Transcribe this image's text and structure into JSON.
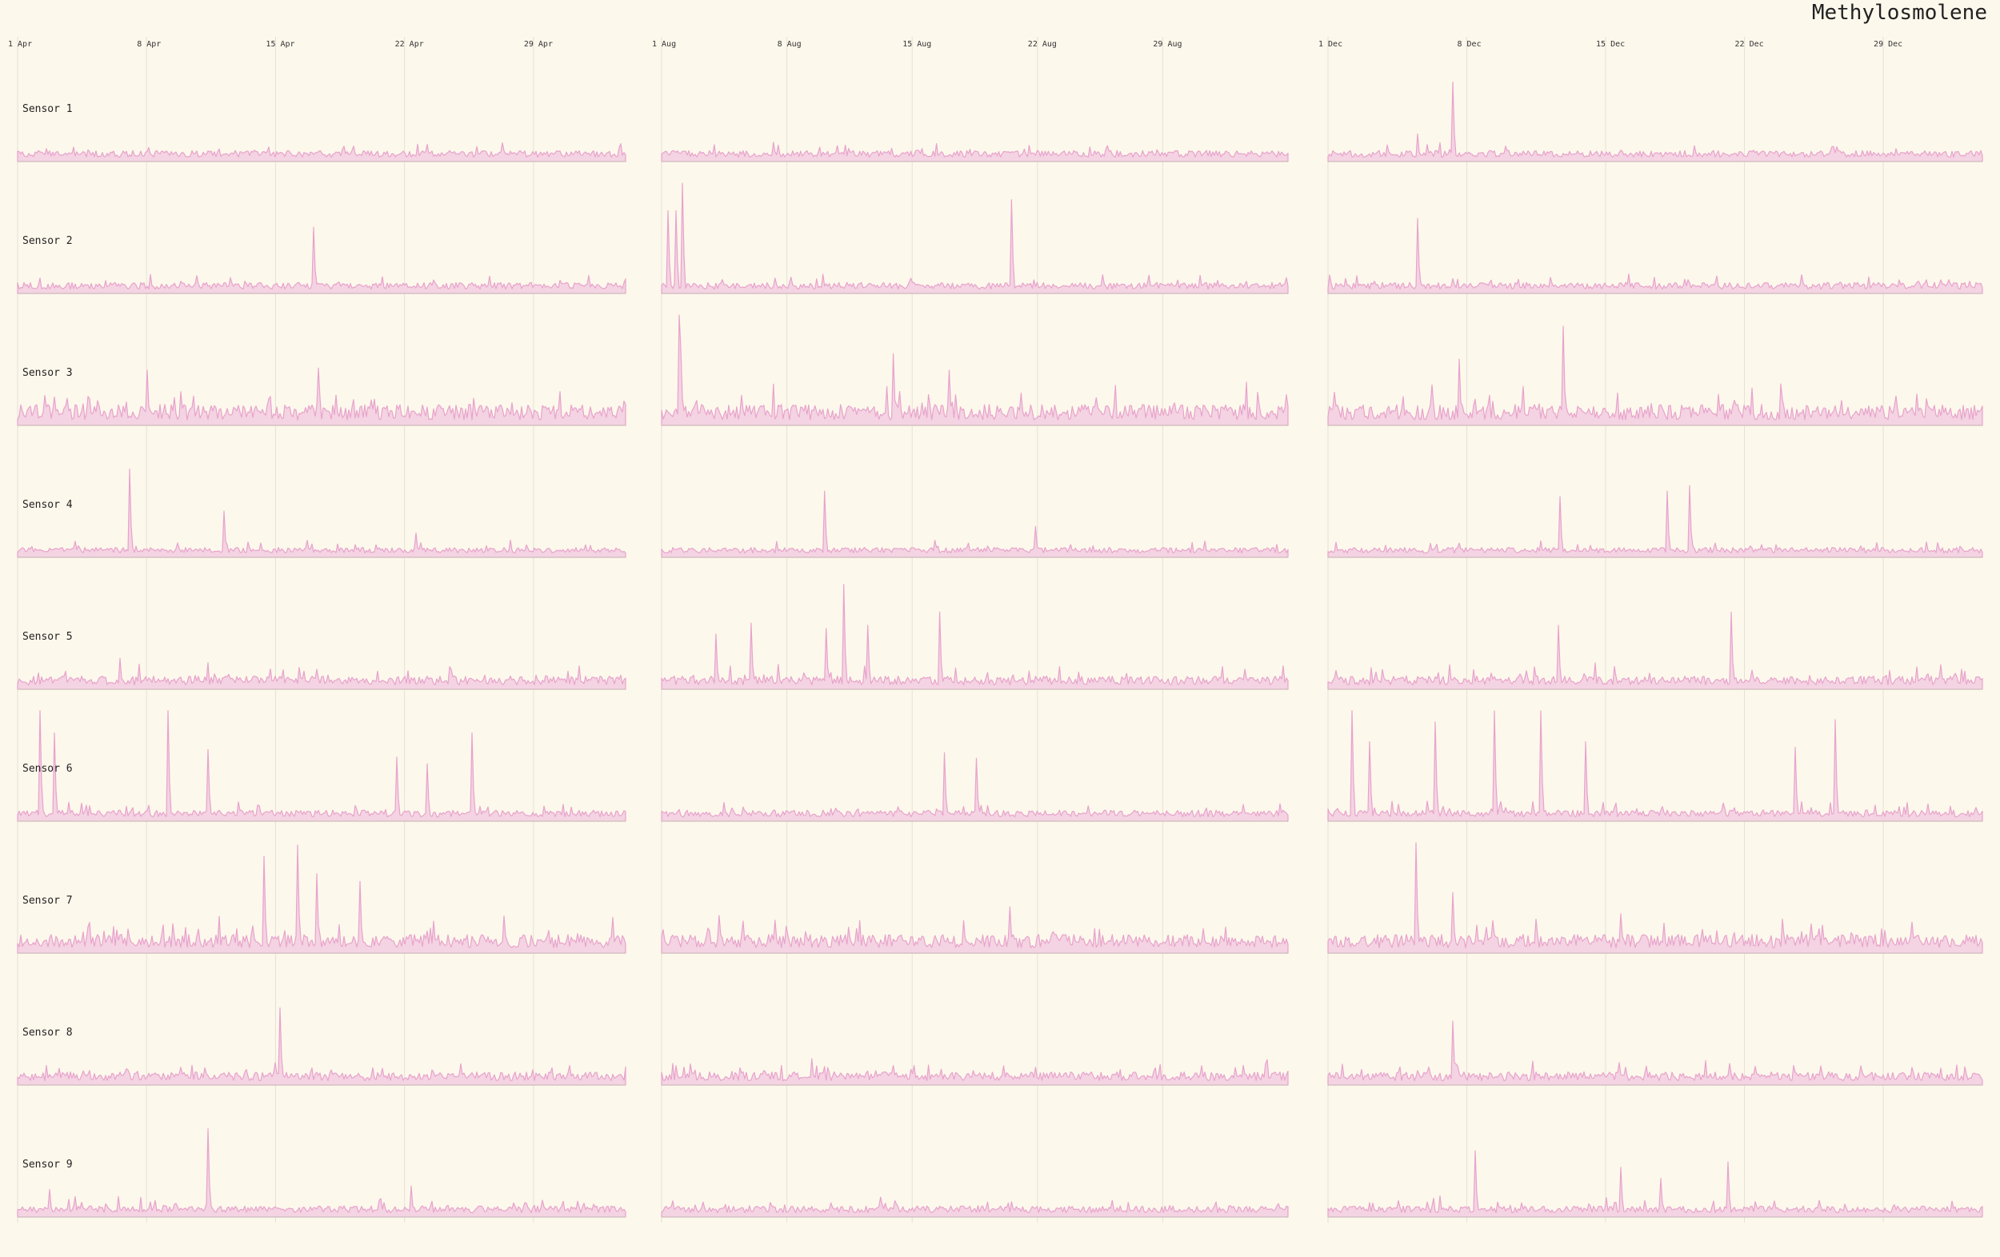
{
  "chart_data": {
    "type": "area",
    "title": "Methylosmolene",
    "colors": {
      "background": "#fdf8ec",
      "series_fill": "#f4d3e2",
      "series_stroke": "#e7a3cc",
      "baseline": "#c8bfb7",
      "grid": "#e4e1d6",
      "text": "#222222"
    },
    "grid": "vertical",
    "y_scale": "shared, no axis shown",
    "panels": [
      {
        "period": "April",
        "x_range": [
          "1 Apr",
          "3 May"
        ],
        "x_ticks": [
          "1 Apr",
          "8 Apr",
          "15 Apr",
          "22 Apr",
          "29 Apr"
        ]
      },
      {
        "period": "August",
        "x_range": [
          "1 Aug",
          "5 Sep"
        ],
        "x_ticks": [
          "1 Aug",
          "8 Aug",
          "15 Aug",
          "22 Aug",
          "29 Aug"
        ]
      },
      {
        "period": "December",
        "x_range": [
          "1 Dec",
          "3 Jan"
        ],
        "x_ticks": [
          "1 Dec",
          "8 Dec",
          "15 Dec",
          "22 Dec",
          "29 Dec"
        ]
      }
    ],
    "series": [
      {
        "name": "Sensor 1",
        "noise_level": 0.06,
        "baseline": 0.04,
        "spikes": [
          [],
          [],
          [
            {
              "day": 4.5,
              "value": 0.25
            },
            {
              "day": 6.3,
              "value": 0.72
            }
          ]
        ]
      },
      {
        "name": "Sensor 2",
        "noise_level": 0.06,
        "baseline": 0.04,
        "spikes": [
          [
            {
              "day": 16.1,
              "value": 0.6
            }
          ],
          [
            {
              "day": 0.4,
              "value": 0.75
            },
            {
              "day": 0.8,
              "value": 0.75
            },
            {
              "day": 1.2,
              "value": 1.0
            },
            {
              "day": 19.6,
              "value": 0.85
            }
          ],
          [
            {
              "day": 4.5,
              "value": 0.68
            }
          ]
        ]
      },
      {
        "name": "Sensor 3",
        "noise_level": 0.14,
        "baseline": 0.05,
        "spikes": [
          [
            {
              "day": 7.0,
              "value": 0.5
            },
            {
              "day": 16.3,
              "value": 0.52
            }
          ],
          [
            {
              "day": 1.0,
              "value": 1.0
            },
            {
              "day": 1.1,
              "value": 0.7
            },
            {
              "day": 13.0,
              "value": 0.65
            },
            {
              "day": 16.1,
              "value": 0.5
            }
          ],
          [
            {
              "day": 6.6,
              "value": 0.6
            },
            {
              "day": 11.9,
              "value": 0.9
            }
          ]
        ]
      },
      {
        "name": "Sensor 4",
        "noise_level": 0.05,
        "baseline": 0.04,
        "spikes": [
          [
            {
              "day": 6.1,
              "value": 0.8
            },
            {
              "day": 11.2,
              "value": 0.42
            },
            {
              "day": 21.6,
              "value": 0.22
            }
          ],
          [
            {
              "day": 9.1,
              "value": 0.6
            },
            {
              "day": 20.9,
              "value": 0.28
            }
          ],
          [
            {
              "day": 11.7,
              "value": 0.55
            },
            {
              "day": 17.1,
              "value": 0.6
            },
            {
              "day": 18.2,
              "value": 0.65
            }
          ]
        ]
      },
      {
        "name": "Sensor 5",
        "noise_level": 0.08,
        "baseline": 0.04,
        "spikes": [
          [
            {
              "day": 5.6,
              "value": 0.28
            }
          ],
          [
            {
              "day": 3.0,
              "value": 0.5
            },
            {
              "day": 5.0,
              "value": 0.6
            },
            {
              "day": 9.2,
              "value": 0.55
            },
            {
              "day": 10.2,
              "value": 0.95
            },
            {
              "day": 11.5,
              "value": 0.58
            },
            {
              "day": 15.6,
              "value": 0.7
            }
          ],
          [
            {
              "day": 11.6,
              "value": 0.58
            },
            {
              "day": 20.3,
              "value": 0.7
            }
          ]
        ]
      },
      {
        "name": "Sensor 6",
        "noise_level": 0.06,
        "baseline": 0.04,
        "spikes": [
          [
            {
              "day": 1.2,
              "value": 1.0
            },
            {
              "day": 2.0,
              "value": 0.8
            },
            {
              "day": 8.2,
              "value": 1.0
            },
            {
              "day": 10.3,
              "value": 0.65
            },
            {
              "day": 20.6,
              "value": 0.58
            },
            {
              "day": 22.2,
              "value": 0.52
            },
            {
              "day": 24.7,
              "value": 0.8
            }
          ],
          [
            {
              "day": 15.8,
              "value": 0.62
            },
            {
              "day": 17.6,
              "value": 0.57
            }
          ],
          [
            {
              "day": 1.2,
              "value": 1.0
            },
            {
              "day": 2.1,
              "value": 0.72
            },
            {
              "day": 5.4,
              "value": 0.9
            },
            {
              "day": 8.4,
              "value": 1.0
            },
            {
              "day": 10.7,
              "value": 1.0
            },
            {
              "day": 13.0,
              "value": 0.72
            },
            {
              "day": 23.6,
              "value": 0.67
            },
            {
              "day": 25.6,
              "value": 0.92
            }
          ]
        ]
      },
      {
        "name": "Sensor 7",
        "noise_level": 0.12,
        "baseline": 0.05,
        "spikes": [
          [
            {
              "day": 13.4,
              "value": 0.88
            },
            {
              "day": 15.2,
              "value": 0.98
            },
            {
              "day": 16.2,
              "value": 0.72
            },
            {
              "day": 18.6,
              "value": 0.65
            }
          ],
          [
            {
              "day": 19.5,
              "value": 0.42
            }
          ],
          [
            {
              "day": 4.4,
              "value": 1.0
            },
            {
              "day": 6.3,
              "value": 0.55
            }
          ]
        ]
      },
      {
        "name": "Sensor 8",
        "noise_level": 0.08,
        "baseline": 0.04,
        "spikes": [
          [
            {
              "day": 14.2,
              "value": 0.7
            }
          ],
          [],
          [
            {
              "day": 6.3,
              "value": 0.58
            }
          ]
        ]
      },
      {
        "name": "Sensor 9",
        "noise_level": 0.06,
        "baseline": 0.04,
        "spikes": [
          [
            {
              "day": 1.7,
              "value": 0.25
            },
            {
              "day": 10.3,
              "value": 0.8
            },
            {
              "day": 21.4,
              "value": 0.28
            }
          ],
          [],
          [
            {
              "day": 7.4,
              "value": 0.6
            },
            {
              "day": 14.8,
              "value": 0.45
            },
            {
              "day": 16.8,
              "value": 0.35
            },
            {
              "day": 20.2,
              "value": 0.5
            }
          ]
        ]
      }
    ]
  }
}
